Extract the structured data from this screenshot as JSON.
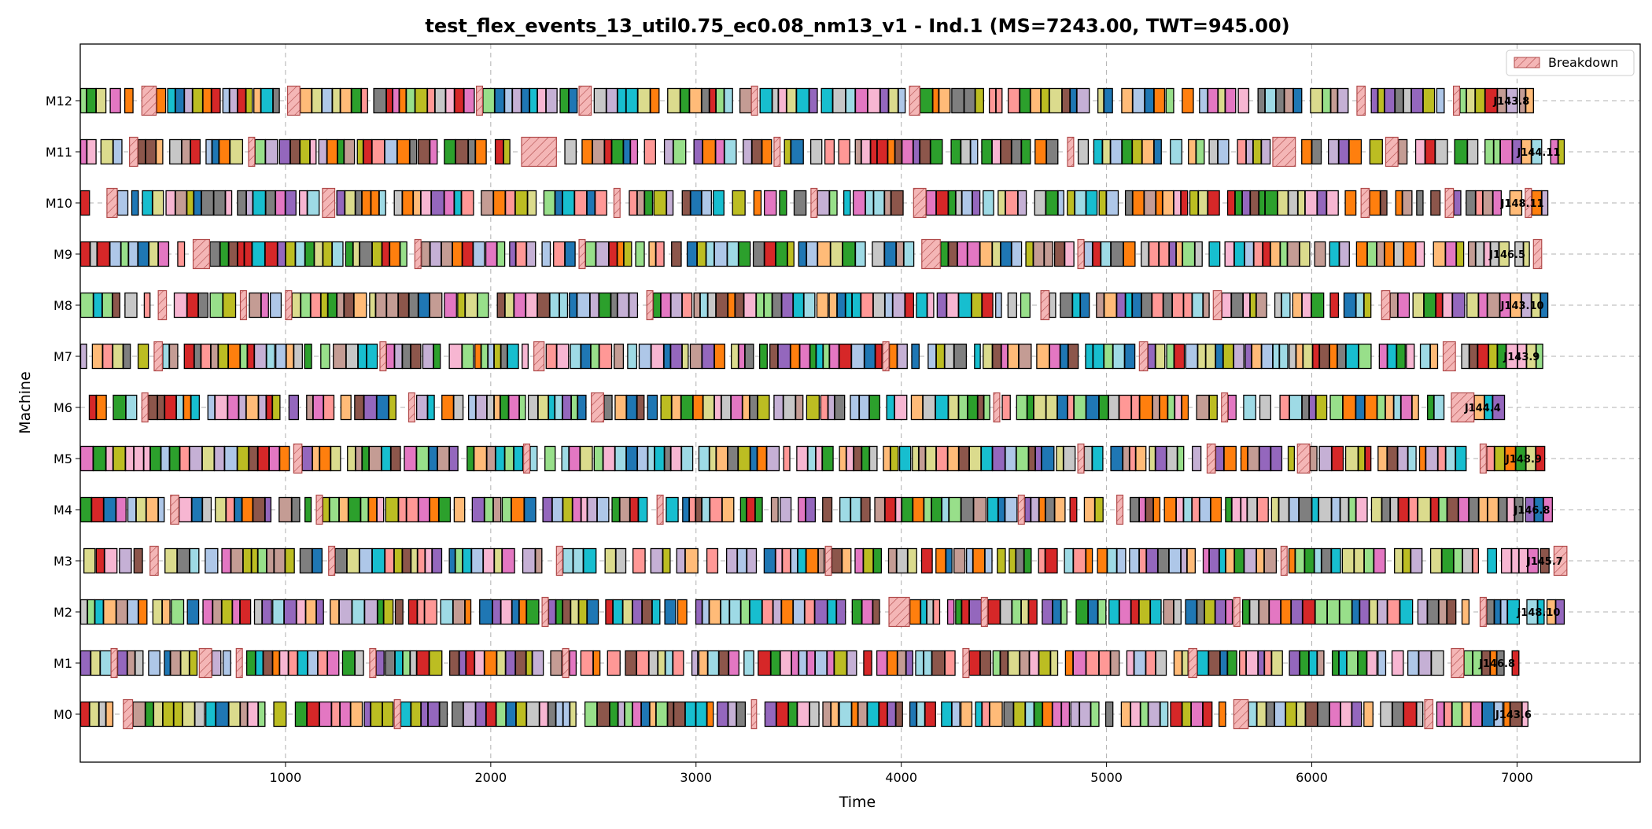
{
  "chart_data": {
    "type": "gantt",
    "title": "test_flex_events_13_util0.75_ec0.08_nm13_v1 - Ind.1 (MS=7243.00, TWT=945.00)",
    "xlabel": "Time",
    "ylabel": "Machine",
    "xlim": [
      0,
      7600
    ],
    "x_ticks": [
      1000,
      2000,
      3000,
      4000,
      5000,
      6000,
      7000
    ],
    "grid": "dashed",
    "legend": {
      "placement": "top-right",
      "entries": [
        "Breakdown"
      ]
    },
    "colors": {
      "breakdown_fill": "#f4b6b6",
      "breakdown_edge": "#b04a4a",
      "palette": [
        "#1f77b4",
        "#aec7e8",
        "#ff7f0e",
        "#ffbb78",
        "#2ca02c",
        "#98df8a",
        "#d62728",
        "#ff9896",
        "#9467bd",
        "#c5b0d5",
        "#8c564b",
        "#c49c94",
        "#e377c2",
        "#f7b6d2",
        "#7f7f7f",
        "#c7c7c7",
        "#bcbd22",
        "#dbdb8d",
        "#17becf",
        "#9edae5"
      ]
    },
    "machines": [
      "M0",
      "M1",
      "M2",
      "M3",
      "M4",
      "M5",
      "M6",
      "M7",
      "M8",
      "M9",
      "M10",
      "M11",
      "M12"
    ],
    "machines_top_to_bottom": [
      "M12",
      "M11",
      "M10",
      "M9",
      "M8",
      "M7",
      "M6",
      "M5",
      "M4",
      "M3",
      "M2",
      "M1",
      "M0"
    ],
    "machine_makespans": {
      "M0": 7090,
      "M1": 7010,
      "M2": 7230,
      "M3": 7243,
      "M4": 7180,
      "M5": 7140,
      "M6": 6940,
      "M7": 7130,
      "M8": 7150,
      "M9": 7060,
      "M10": 7150,
      "M11": 7230,
      "M12": 7080
    },
    "end_labels": {
      "M0": "J143.6",
      "M1": "J146.8",
      "M2": "J148.10",
      "M3": "J145.7",
      "M4": "J146.8",
      "M5": "J148.9",
      "M6": "J144.4",
      "M7": "J143.9",
      "M8": "J143.10",
      "M9": "J146.5",
      "M10": "J148.11",
      "M11": "J144.11",
      "M12": "J143.8"
    },
    "breakdowns": {
      "M0": [
        [
          210,
          255
        ],
        [
          1530,
          1560
        ],
        [
          3270,
          3295
        ],
        [
          5620,
          5690
        ],
        [
          6550,
          6590
        ]
      ],
      "M1": [
        [
          150,
          180
        ],
        [
          580,
          640
        ],
        [
          760,
          790
        ],
        [
          1410,
          1440
        ],
        [
          2350,
          2380
        ],
        [
          4300,
          4330
        ],
        [
          5400,
          5440
        ],
        [
          6680,
          6740
        ]
      ],
      "M2": [
        [
          2250,
          2280
        ],
        [
          3940,
          4040
        ],
        [
          4390,
          4420
        ],
        [
          5620,
          5650
        ],
        [
          6820,
          6850
        ]
      ],
      "M3": [
        [
          340,
          380
        ],
        [
          1210,
          1240
        ],
        [
          2320,
          2350
        ],
        [
          3630,
          3660
        ],
        [
          5850,
          5880
        ],
        [
          7180,
          7243
        ]
      ],
      "M4": [
        [
          440,
          480
        ],
        [
          1150,
          1180
        ],
        [
          2810,
          2840
        ],
        [
          4570,
          4600
        ],
        [
          5050,
          5080
        ]
      ],
      "M5": [
        [
          1040,
          1080
        ],
        [
          2160,
          2190
        ],
        [
          4860,
          4890
        ],
        [
          5490,
          5530
        ],
        [
          5930,
          5990
        ],
        [
          6820,
          6850
        ]
      ],
      "M6": [
        [
          300,
          330
        ],
        [
          1600,
          1630
        ],
        [
          2490,
          2550
        ],
        [
          4450,
          4480
        ],
        [
          5560,
          5590
        ],
        [
          6680,
          6790
        ]
      ],
      "M7": [
        [
          360,
          400
        ],
        [
          1460,
          1490
        ],
        [
          2210,
          2260
        ],
        [
          3910,
          3940
        ],
        [
          5160,
          5200
        ],
        [
          6640,
          6700
        ]
      ],
      "M8": [
        [
          380,
          420
        ],
        [
          780,
          810
        ],
        [
          1000,
          1030
        ],
        [
          2760,
          2790
        ],
        [
          4680,
          4720
        ],
        [
          5520,
          5560
        ],
        [
          6340,
          6380
        ]
      ],
      "M9": [
        [
          550,
          630
        ],
        [
          1630,
          1660
        ],
        [
          2430,
          2460
        ],
        [
          4100,
          4190
        ],
        [
          4860,
          4890
        ],
        [
          7080,
          7120
        ]
      ],
      "M10": [
        [
          130,
          180
        ],
        [
          1180,
          1240
        ],
        [
          2600,
          2630
        ],
        [
          3560,
          3590
        ],
        [
          4060,
          4120
        ],
        [
          6240,
          6280
        ],
        [
          6650,
          6690
        ],
        [
          7040,
          7070
        ]
      ],
      "M11": [
        [
          240,
          280
        ],
        [
          820,
          850
        ],
        [
          2150,
          2320
        ],
        [
          3380,
          3410
        ],
        [
          4810,
          4840
        ],
        [
          5810,
          5920
        ],
        [
          6360,
          6420
        ]
      ],
      "M12": [
        [
          300,
          370
        ],
        [
          1010,
          1070
        ],
        [
          1930,
          1960
        ],
        [
          2430,
          2490
        ],
        [
          3270,
          3300
        ],
        [
          4040,
          4090
        ],
        [
          6220,
          6260
        ],
        [
          6690,
          6720
        ]
      ]
    }
  }
}
